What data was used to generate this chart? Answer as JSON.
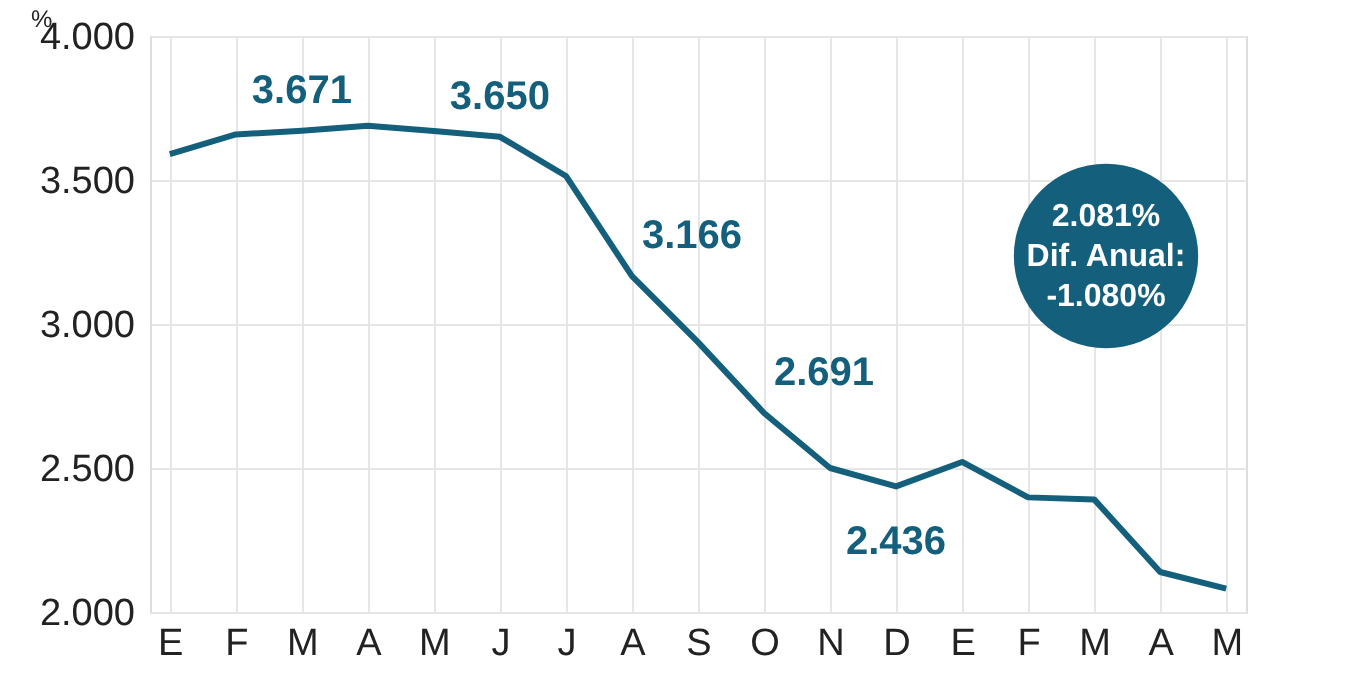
{
  "chart_data": {
    "type": "line",
    "ylabel": "%",
    "categories": [
      "E",
      "F",
      "M",
      "A",
      "M",
      "J",
      "J",
      "A",
      "S",
      "O",
      "N",
      "D",
      "E",
      "F",
      "M",
      "A",
      "M"
    ],
    "series": [
      {
        "color": "#135f7c",
        "values": [
          3590,
          3658,
          3671,
          3688,
          3670,
          3650,
          3514,
          3166,
          2937,
          2691,
          2500,
          2436,
          2521,
          2398,
          2391,
          2139,
          2081
        ],
        "value_labels": [
          null,
          null,
          "3.671",
          null,
          null,
          "3.650",
          null,
          "3.166",
          null,
          "2.691",
          null,
          "2.436",
          null,
          null,
          null,
          null,
          null
        ]
      }
    ],
    "ylim": [
      2000,
      4000
    ],
    "yticks": [
      {
        "value": 2000,
        "label": "2.000"
      },
      {
        "value": 2500,
        "label": "2.500"
      },
      {
        "value": 3000,
        "label": "3.000"
      },
      {
        "value": 3500,
        "label": "3.500"
      },
      {
        "value": 4000,
        "label": "4.000"
      }
    ],
    "grid": true,
    "marker": "none",
    "line_style": "solid",
    "annotations": [
      "2.081%\nDif. Anual:\n-1.080%"
    ]
  }
}
